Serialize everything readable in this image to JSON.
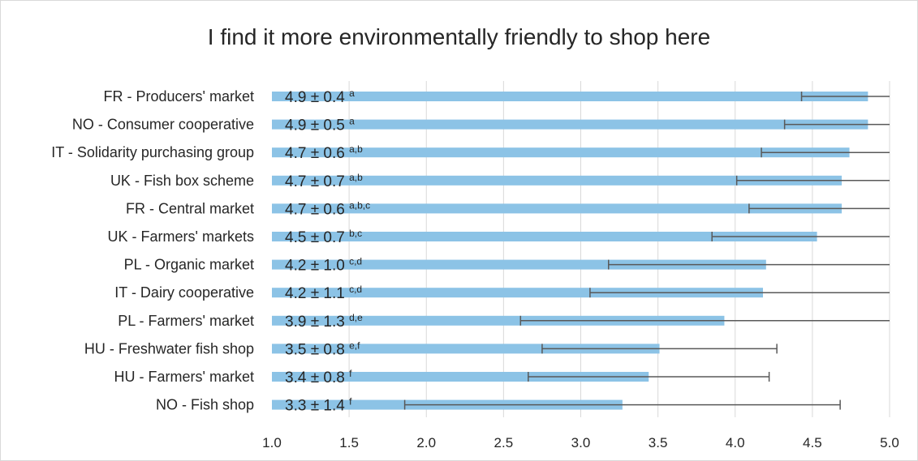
{
  "chart_data": {
    "type": "bar",
    "orientation": "horizontal",
    "title": "I find it more environmentally friendly to shop here",
    "xlabel": "",
    "ylabel": "",
    "xlim": [
      1.0,
      5.0
    ],
    "x_ticks": [
      "1.0",
      "1.5",
      "2.0",
      "2.5",
      "3.0",
      "3.5",
      "4.0",
      "4.5",
      "5.0"
    ],
    "grid": "vertical",
    "legend": "none",
    "bar_color": "#8cc3e6",
    "error_bar_color": "#595959",
    "categories": [
      "FR - Producers' market",
      "NO - Consumer cooperative",
      "IT - Solidarity purchasing group",
      "UK -  Fish box scheme",
      "FR - Central market",
      "UK - Farmers' markets",
      "PL - Organic market",
      "IT - Dairy cooperative",
      "PL - Farmers' market",
      "HU - Freshwater fish shop",
      "HU - Farmers' market",
      "NO - Fish shop"
    ],
    "values": [
      4.86,
      4.86,
      4.74,
      4.69,
      4.69,
      4.53,
      4.2,
      4.18,
      3.93,
      3.51,
      3.44,
      3.27
    ],
    "errors": [
      0.43,
      0.54,
      0.57,
      0.68,
      0.6,
      0.68,
      1.02,
      1.12,
      1.32,
      0.76,
      0.78,
      1.41
    ],
    "labels": [
      {
        "main": "4.9 ± 0.4",
        "sup": "a"
      },
      {
        "main": "4.9 ± 0.5",
        "sup": "a"
      },
      {
        "main": "4.7 ± 0.6",
        "sup": "a,b"
      },
      {
        "main": "4.7 ± 0.7",
        "sup": "a,b"
      },
      {
        "main": "4.7 ± 0.6",
        "sup": "a,b,c"
      },
      {
        "main": "4.5 ± 0.7",
        "sup": "b,c"
      },
      {
        "main": "4.2 ± 1.0",
        "sup": "c,d"
      },
      {
        "main": "4.2 ± 1.1",
        "sup": "c,d"
      },
      {
        "main": "3.9 ± 1.3",
        "sup": "d,e"
      },
      {
        "main": "3.5 ± 0.8",
        "sup": "e,f"
      },
      {
        "main": "3.4 ± 0.8",
        "sup": "f"
      },
      {
        "main": "3.3 ± 1.4",
        "sup": "f"
      }
    ]
  }
}
